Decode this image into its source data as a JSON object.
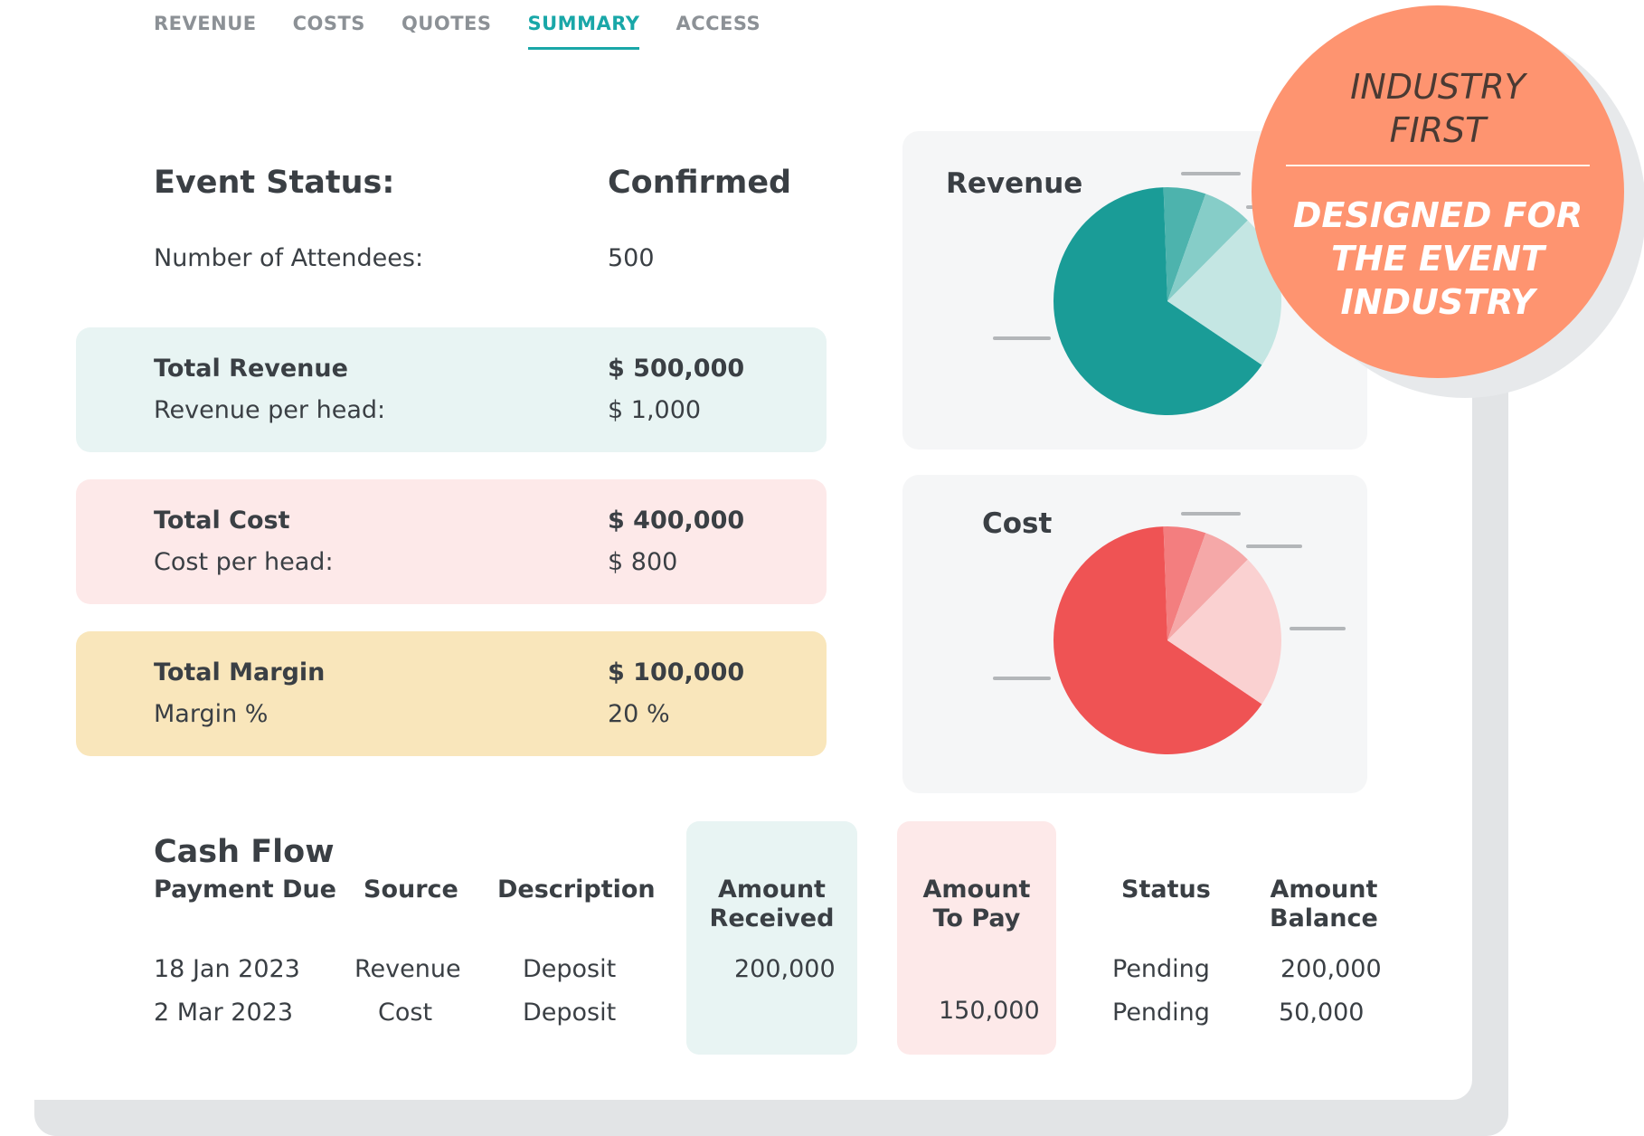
{
  "tabs": [
    {
      "label": "REVENUE",
      "active": false
    },
    {
      "label": "COSTS",
      "active": false
    },
    {
      "label": "QUOTES",
      "active": false
    },
    {
      "label": "SUMMARY",
      "active": true
    },
    {
      "label": "ACCESS",
      "active": false
    }
  ],
  "status": {
    "label": "Event Status:",
    "value": "Confirmed",
    "attendees_label": "Number of Attendees:",
    "attendees_value": "500"
  },
  "totals": {
    "revenue": {
      "title": "Total Revenue",
      "value": "$ 500,000",
      "sub_label": "Revenue per head:",
      "sub_value": "$ 1,000"
    },
    "cost": {
      "title": "Total Cost",
      "value": "$ 400,000",
      "sub_label": "Cost per head:",
      "sub_value": "$ 800"
    },
    "margin": {
      "title": "Total Margin",
      "value": "$ 100,000",
      "sub_label": "Margin %",
      "sub_value": "20 %"
    }
  },
  "chart_data": [
    {
      "type": "pie",
      "title": "Revenue",
      "values": [
        65,
        6,
        7,
        22
      ],
      "colors": [
        "#1a9c97",
        "#4db3ad",
        "#86cdc8",
        "#c4e6e3"
      ]
    },
    {
      "type": "pie",
      "title": "Cost",
      "values": [
        65,
        6,
        7,
        22
      ],
      "colors": [
        "#ef5354",
        "#f37e7f",
        "#f5a8a8",
        "#fad1d1"
      ]
    }
  ],
  "cashflow": {
    "title": "Cash Flow",
    "headers": {
      "payment_due": "Payment Due",
      "source": "Source",
      "description": "Description",
      "amount_received_1": "Amount",
      "amount_received_2": "Received",
      "amount_to_pay_1": "Amount",
      "amount_to_pay_2": "To Pay",
      "status": "Status",
      "amount_balance_1": "Amount",
      "amount_balance_2": "Balance"
    },
    "rows": [
      {
        "payment_due": "18 Jan 2023",
        "source": "Revenue",
        "description": "Deposit",
        "amount_received": "200,000",
        "amount_to_pay": "",
        "status": "Pending",
        "amount_balance": "200,000"
      },
      {
        "payment_due": "2 Mar 2023",
        "source": "Cost",
        "description": "Deposit",
        "amount_received": "",
        "amount_to_pay": "150,000",
        "status": "Pending",
        "amount_balance": "50,000"
      }
    ]
  },
  "badge": {
    "line1": "INDUSTRY",
    "line2": "FIRST",
    "line3": "DESIGNED FOR",
    "line4": "THE EVENT",
    "line5": "INDUSTRY"
  },
  "colors": {
    "accent": "#19a7a8",
    "badge": "#fe9470"
  }
}
